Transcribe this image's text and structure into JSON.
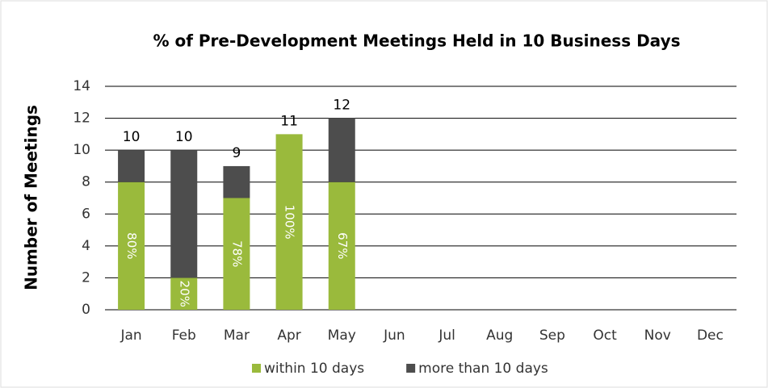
{
  "chart_data": {
    "type": "stacked_bar",
    "title": "% of Pre-Development Meetings Held in 10 Business Days",
    "ylabel": "Number of Meetings",
    "categories": [
      "Jan",
      "Feb",
      "Mar",
      "Apr",
      "May",
      "Jun",
      "Jul",
      "Aug",
      "Sep",
      "Oct",
      "Nov",
      "Dec"
    ],
    "series": [
      {
        "name": "within 10 days",
        "color": "#9aba3c",
        "values": [
          8,
          2,
          7,
          11,
          8,
          null,
          null,
          null,
          null,
          null,
          null,
          null
        ],
        "percent_labels": [
          "80%",
          "20%",
          "78%",
          "100%",
          "67%",
          null,
          null,
          null,
          null,
          null,
          null,
          null
        ]
      },
      {
        "name": "more than 10 days",
        "color": "#4d4d4d",
        "values": [
          2,
          8,
          2,
          0,
          4,
          null,
          null,
          null,
          null,
          null,
          null,
          null
        ]
      }
    ],
    "totals": [
      10,
      10,
      9,
      11,
      12,
      null,
      null,
      null,
      null,
      null,
      null,
      null
    ],
    "ylim": [
      0,
      14
    ],
    "yticks": [
      0,
      2,
      4,
      6,
      8,
      10,
      12,
      14
    ],
    "grid": true,
    "legend": "bottom"
  }
}
